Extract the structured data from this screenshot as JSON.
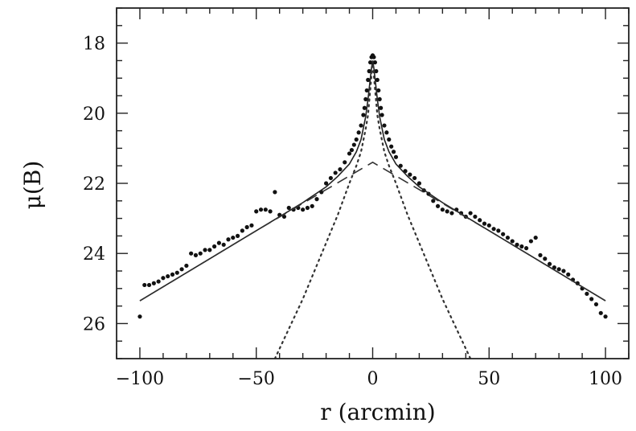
{
  "chart_data": {
    "type": "scatter",
    "title": "",
    "xlabel": "r  (arcmin)",
    "ylabel": "μ(B)",
    "xlim": [
      -110,
      110
    ],
    "ylim": [
      27,
      17
    ],
    "y_inverted": true,
    "grid": false,
    "x_ticks": [
      -100,
      -50,
      0,
      50,
      100
    ],
    "x_tick_labels": [
      "−100",
      "−50",
      "0",
      "50",
      "100"
    ],
    "y_ticks": [
      18,
      20,
      22,
      24,
      26
    ],
    "y_tick_labels": [
      "18",
      "20",
      "22",
      "24",
      "26"
    ],
    "series": [
      {
        "style": "points",
        "color": "#111111",
        "x": [
          -100,
          -98,
          -96,
          -94,
          -92,
          -90,
          -88,
          -86,
          -84,
          -82,
          -80,
          -78,
          -76,
          -74,
          -72,
          -70,
          -68,
          -66,
          -64,
          -62,
          -60,
          -58,
          -56,
          -54,
          -52,
          -50,
          -48,
          -46,
          -44,
          -42,
          -40,
          -38,
          -36,
          -34,
          -32,
          -30,
          -28,
          -26,
          -24,
          -22,
          -20,
          -18,
          -16,
          -14,
          -12,
          -10,
          -9,
          -8,
          -7,
          -6,
          -5,
          -4,
          -3.5,
          -3,
          -2.5,
          -2,
          -1.5,
          -1,
          -0.5,
          0,
          0.5,
          1,
          1.5,
          2,
          2.5,
          3,
          3.5,
          4,
          5,
          6,
          7,
          8,
          9,
          10,
          12,
          14,
          16,
          18,
          20,
          22,
          24,
          26,
          28,
          30,
          32,
          34,
          36,
          38,
          40,
          42,
          44,
          46,
          48,
          50,
          52,
          54,
          56,
          58,
          60,
          62,
          64,
          66,
          68,
          70,
          72,
          74,
          76,
          78,
          80,
          82,
          84,
          86,
          88,
          90,
          92,
          94,
          96,
          98,
          100
        ],
        "y": [
          25.8,
          24.9,
          24.9,
          24.85,
          24.8,
          24.7,
          24.65,
          24.6,
          24.55,
          24.45,
          24.35,
          24.0,
          24.05,
          24.0,
          23.9,
          23.9,
          23.8,
          23.7,
          23.75,
          23.6,
          23.55,
          23.5,
          23.35,
          23.25,
          23.2,
          22.8,
          22.75,
          22.75,
          22.8,
          22.25,
          22.9,
          22.95,
          22.7,
          22.75,
          22.7,
          22.75,
          22.7,
          22.65,
          22.45,
          22.25,
          22.0,
          21.85,
          21.7,
          21.6,
          21.4,
          21.15,
          21.05,
          20.9,
          20.75,
          20.55,
          20.35,
          20.05,
          19.85,
          19.6,
          19.35,
          19.05,
          18.8,
          18.55,
          18.4,
          18.35,
          18.4,
          18.55,
          18.8,
          19.05,
          19.35,
          19.6,
          19.85,
          20.05,
          20.35,
          20.55,
          20.75,
          20.95,
          21.1,
          21.25,
          21.5,
          21.65,
          21.75,
          21.85,
          22.0,
          22.2,
          22.3,
          22.5,
          22.65,
          22.75,
          22.8,
          22.85,
          22.75,
          22.85,
          22.95,
          22.85,
          22.95,
          23.05,
          23.15,
          23.2,
          23.3,
          23.35,
          23.45,
          23.55,
          23.65,
          23.75,
          23.8,
          23.85,
          23.65,
          23.55,
          24.05,
          24.15,
          24.3,
          24.4,
          24.45,
          24.5,
          24.6,
          24.75,
          24.85,
          25.0,
          25.15,
          25.3,
          25.45,
          25.7,
          25.8
        ]
      },
      {
        "style": "solid",
        "color": "#222222",
        "x": [
          -100,
          -80,
          -60,
          -40,
          -30,
          -20,
          -15,
          -10,
          -7,
          -5,
          -3,
          -2,
          -1,
          -0.5,
          0,
          0.5,
          1,
          2,
          3,
          5,
          7,
          10,
          15,
          20,
          30,
          40,
          60,
          80,
          100
        ],
        "y": [
          25.35,
          24.55,
          23.75,
          22.95,
          22.55,
          22.1,
          21.8,
          21.45,
          21.1,
          20.75,
          20.1,
          19.6,
          19.0,
          18.7,
          18.5,
          18.7,
          19.0,
          19.6,
          20.1,
          20.75,
          21.1,
          21.45,
          21.8,
          22.1,
          22.55,
          22.95,
          23.75,
          24.55,
          25.35
        ]
      },
      {
        "style": "dashed",
        "color": "#333333",
        "x": [
          -100,
          -50,
          0,
          50,
          100
        ],
        "y": [
          25.35,
          23.35,
          21.4,
          23.35,
          25.35
        ]
      },
      {
        "style": "dotted",
        "color": "#333333",
        "x": [
          -42,
          -30,
          -20,
          -15,
          -10,
          -7,
          -5,
          -3,
          -2,
          -1,
          -0.5,
          0,
          0.5,
          1,
          2,
          3,
          5,
          7,
          10,
          15,
          20,
          30,
          42
        ],
        "y": [
          27.0,
          25.3,
          23.7,
          22.9,
          22.0,
          21.5,
          21.1,
          20.45,
          20.05,
          19.3,
          18.9,
          18.5,
          18.9,
          19.3,
          20.05,
          20.45,
          21.1,
          21.5,
          22.0,
          22.9,
          23.7,
          25.3,
          27.0
        ]
      }
    ]
  }
}
